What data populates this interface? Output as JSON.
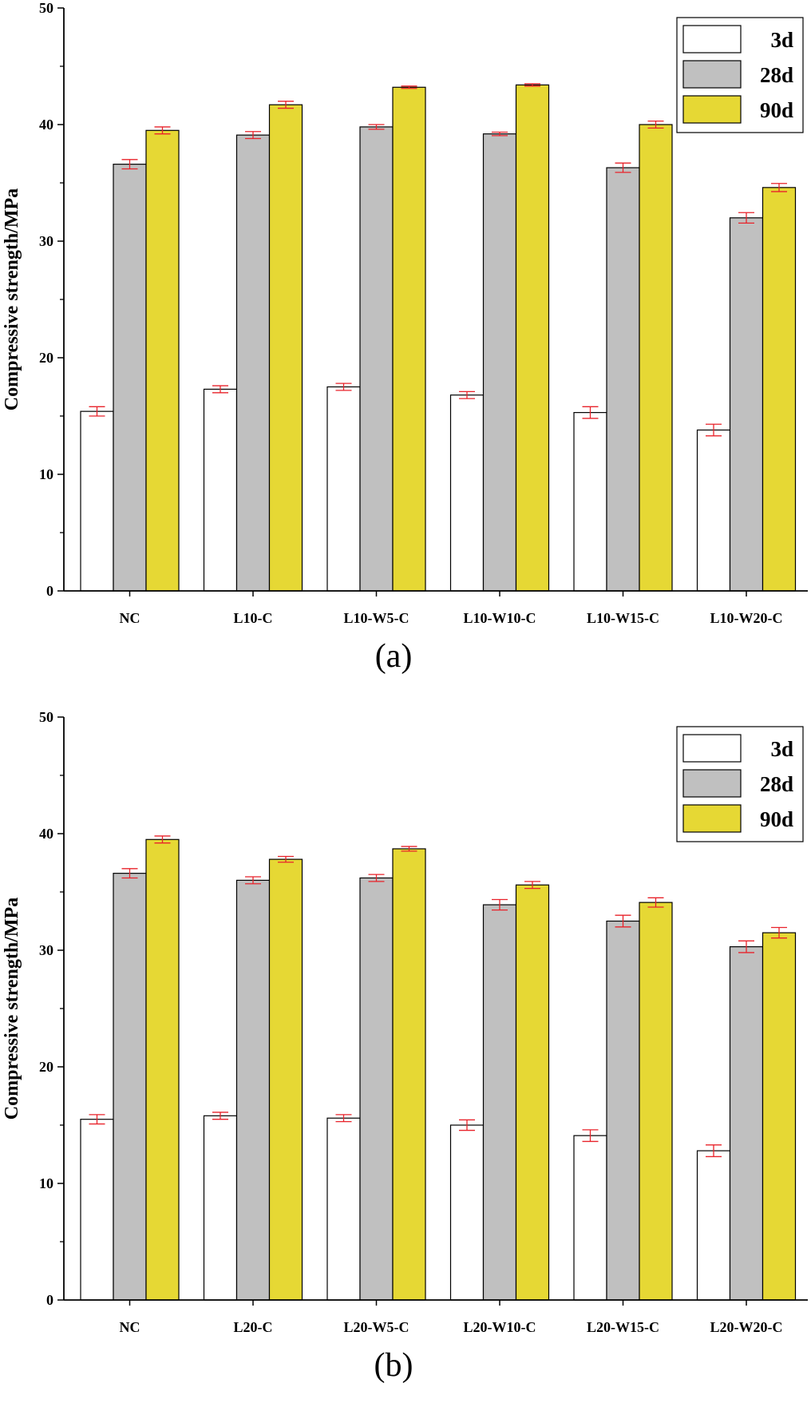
{
  "chart_data": [
    {
      "type": "bar",
      "panel_label": "(a)",
      "ylabel": "Compressive strength/MPa",
      "xlabel": "",
      "ylim": [
        0,
        50
      ],
      "yticks": [
        0,
        10,
        20,
        30,
        40,
        50
      ],
      "categories": [
        "NC",
        "L10-C",
        "L10-W5-C",
        "L10-W10-C",
        "L10-W15-C",
        "L10-W20-C"
      ],
      "series": [
        {
          "name": "3d",
          "color": "#ffffff",
          "values": [
            15.4,
            17.3,
            17.5,
            16.8,
            15.3,
            13.8
          ],
          "errors": [
            0.4,
            0.3,
            0.3,
            0.3,
            0.5,
            0.5
          ]
        },
        {
          "name": "28d",
          "color": "#c0c0c0",
          "values": [
            36.6,
            39.1,
            39.8,
            39.2,
            36.3,
            32.0
          ],
          "errors": [
            0.4,
            0.3,
            0.2,
            0.15,
            0.4,
            0.45
          ]
        },
        {
          "name": "90d",
          "color": "#e6d834",
          "values": [
            39.5,
            41.7,
            43.2,
            43.4,
            40.0,
            34.6
          ],
          "errors": [
            0.3,
            0.3,
            0.1,
            0.1,
            0.3,
            0.35
          ]
        }
      ],
      "legend_position": "top-right",
      "error_bar_color": "#e8222a"
    },
    {
      "type": "bar",
      "panel_label": "(b)",
      "ylabel": "Compressive strength/MPa",
      "xlabel": "",
      "ylim": [
        0,
        50
      ],
      "yticks": [
        0,
        10,
        20,
        30,
        40,
        50
      ],
      "categories": [
        "NC",
        "L20-C",
        "L20-W5-C",
        "L20-W10-C",
        "L20-W15-C",
        "L20-W20-C"
      ],
      "series": [
        {
          "name": "3d",
          "color": "#ffffff",
          "values": [
            15.5,
            15.8,
            15.6,
            15.0,
            14.1,
            12.8
          ],
          "errors": [
            0.4,
            0.3,
            0.3,
            0.45,
            0.5,
            0.5
          ]
        },
        {
          "name": "28d",
          "color": "#c0c0c0",
          "values": [
            36.6,
            36.0,
            36.2,
            33.9,
            32.5,
            30.3
          ],
          "errors": [
            0.4,
            0.3,
            0.3,
            0.45,
            0.5,
            0.5
          ]
        },
        {
          "name": "90d",
          "color": "#e6d834",
          "values": [
            39.5,
            37.8,
            38.7,
            35.6,
            34.1,
            31.5
          ],
          "errors": [
            0.3,
            0.25,
            0.2,
            0.3,
            0.4,
            0.45
          ]
        }
      ],
      "legend_position": "top-right",
      "error_bar_color": "#e8222a"
    }
  ]
}
